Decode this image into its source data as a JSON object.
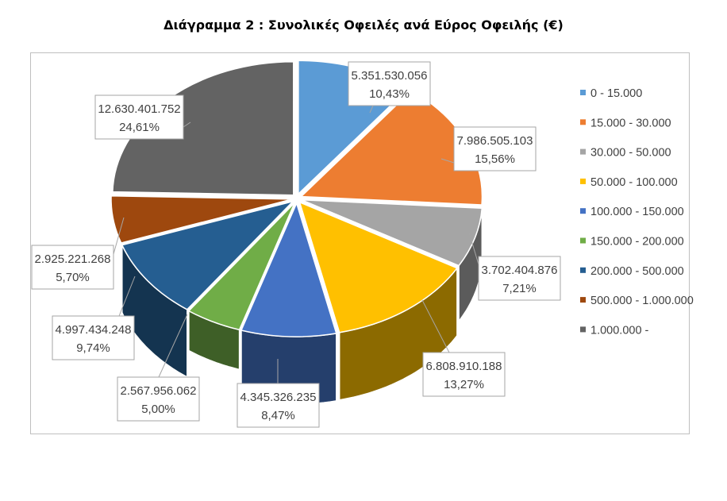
{
  "title": "Διάγραμμα 2 : Συνολικές Οφειλές ανά Εύρος Οφειλής (€)",
  "chart_data": {
    "type": "pie",
    "title": "Διάγραμμα 2 : Συνολικές Οφειλές ανά Εύρος Οφειλής (€)",
    "style": "3d-exploded",
    "legend_position": "right",
    "categories": [
      "0 - 15.000",
      "15.000 - 30.000",
      "30.000 - 50.000",
      "50.000 - 100.000",
      "100.000 - 150.000",
      "150.000 - 200.000",
      "200.000 - 500.000",
      "500.000 - 1.000.000",
      "1.000.000 -"
    ],
    "values": [
      5351530056,
      7986505103,
      3702404876,
      6808910188,
      4345326235,
      2567956062,
      4997434248,
      2925221268,
      12630401752
    ],
    "value_labels": [
      "5.351.530.056",
      "7.986.505.103",
      "3.702.404.876",
      "6.808.910.188",
      "4.345.326.235",
      "2.567.956.062",
      "4.997.434.248",
      "2.925.221.268",
      "12.630.401.752"
    ],
    "percent_labels": [
      "10,43%",
      "15,56%",
      "7,21%",
      "13,27%",
      "8,47%",
      "5,00%",
      "9,74%",
      "5,70%",
      "24,61%"
    ],
    "colors": [
      "#5b9bd5",
      "#ed7d31",
      "#a5a5a5",
      "#ffc000",
      "#4472c4",
      "#70ad47",
      "#255e91",
      "#9e480e",
      "#636363"
    ]
  }
}
